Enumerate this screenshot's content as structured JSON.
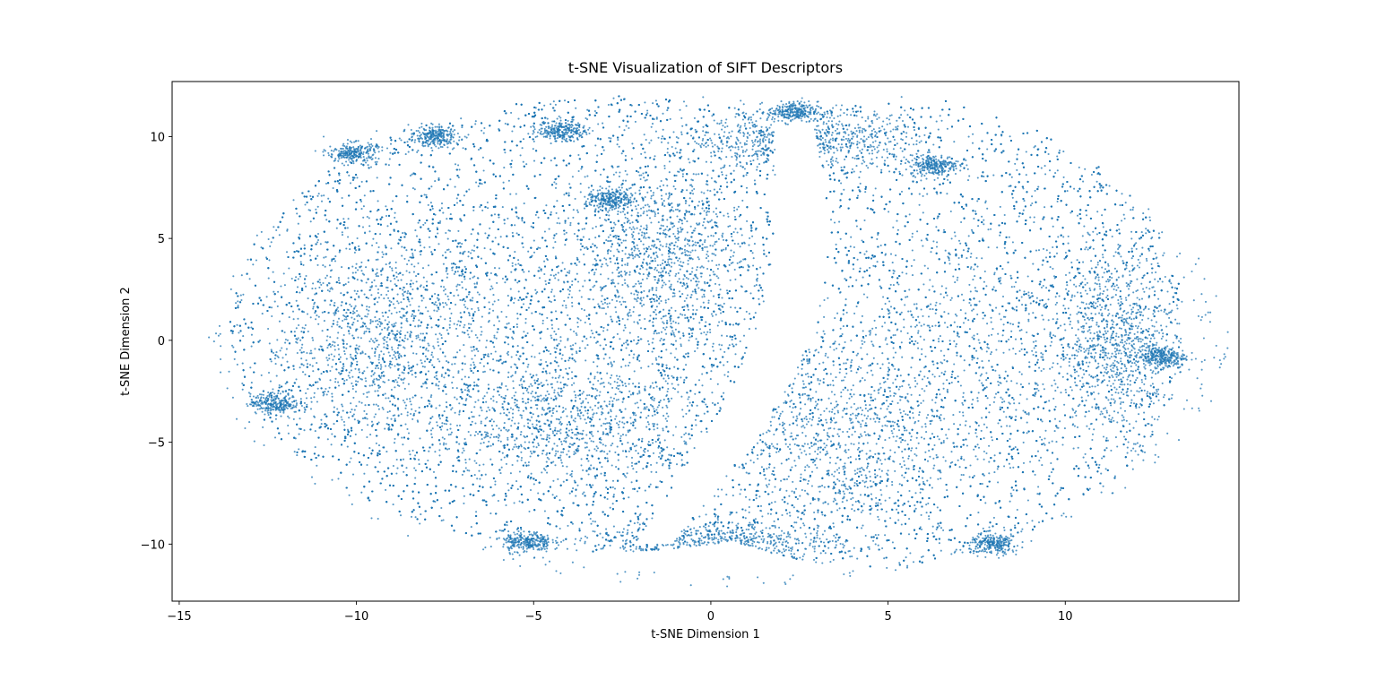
{
  "chart_data": {
    "type": "scatter",
    "title": "t-SNE Visualization of SIFT Descriptors",
    "xlabel": "t-SNE Dimension 1",
    "ylabel": "t-SNE Dimension 2",
    "xlim": [
      -15.2,
      14.9
    ],
    "ylim": [
      -12.8,
      12.7
    ],
    "xticks": [
      -15,
      -10,
      -5,
      0,
      5,
      10
    ],
    "yticks": [
      -10,
      -5,
      0,
      5,
      10
    ],
    "xtick_labels": [
      "−15",
      "−10",
      "−5",
      "0",
      "5",
      "10"
    ],
    "ytick_labels": [
      "−10",
      "−5",
      "0",
      "5",
      "10"
    ],
    "grid": false,
    "legend": "none",
    "marker_color": "#1f77b4",
    "clusters": [
      {
        "cx": -5.3,
        "cy": 1.5,
        "rx": 7.0,
        "ry": 7.6
      },
      {
        "cx": -9.5,
        "cy": 0.0,
        "rx": 3.2,
        "ry": 5.0
      },
      {
        "cx": -1.3,
        "cy": 4.3,
        "rx": 2.4,
        "ry": 4.5
      },
      {
        "cx": -4.0,
        "cy": -4.0,
        "rx": 4.0,
        "ry": 3.2
      },
      {
        "cx": 7.4,
        "cy": 0.1,
        "rx": 5.8,
        "ry": 7.8
      },
      {
        "cx": 3.5,
        "cy": -5.0,
        "rx": 3.5,
        "ry": 5.0
      },
      {
        "cx": 11.5,
        "cy": 0.0,
        "rx": 1.7,
        "ry": 4.5
      },
      {
        "cx": 2.5,
        "cy": 9.8,
        "rx": 3.2,
        "ry": 1.4
      },
      {
        "cx": 0.0,
        "cy": -10.0,
        "rx": 3.6,
        "ry": 1.2
      }
    ],
    "dense_spots": [
      {
        "x": -10.1,
        "y": 9.2
      },
      {
        "x": -7.8,
        "y": 10.0
      },
      {
        "x": -4.2,
        "y": 10.3
      },
      {
        "x": -2.8,
        "y": 6.9
      },
      {
        "x": 2.3,
        "y": 11.2
      },
      {
        "x": 6.3,
        "y": 8.6
      },
      {
        "x": 12.7,
        "y": -0.8
      },
      {
        "x": -12.3,
        "y": -3.1
      },
      {
        "x": -5.2,
        "y": -9.9
      },
      {
        "x": 8.0,
        "y": -10.0
      }
    ]
  }
}
